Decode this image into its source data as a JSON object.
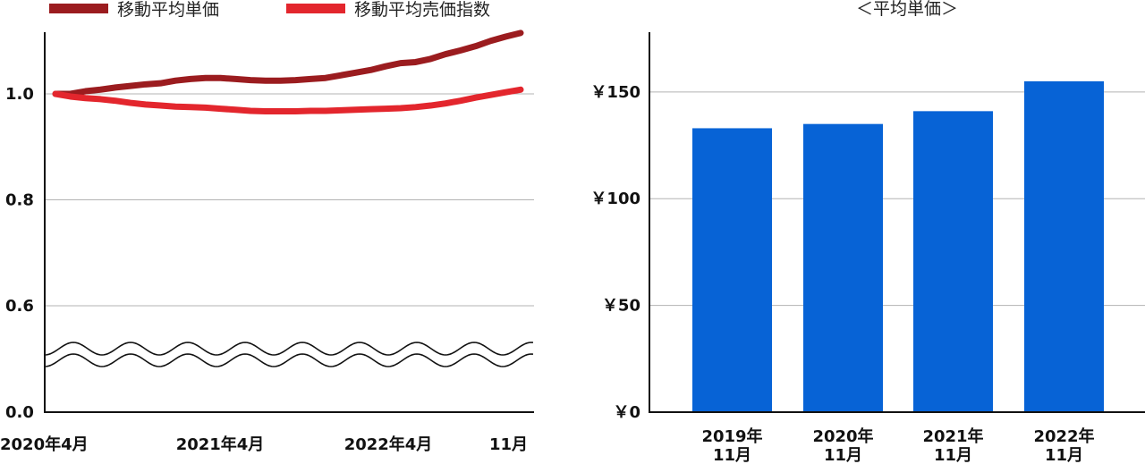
{
  "chart_data": [
    {
      "type": "line",
      "legend": [
        "移動平均単価",
        "移動平均売価指数"
      ],
      "legend_placement": "top",
      "x_tick_labels": [
        "2020年4月",
        "2021年4月",
        "2022年4月",
        "11月"
      ],
      "y_ticks": [
        {
          "value": 0.0,
          "label": "0.0"
        },
        {
          "value": 0.6,
          "label": "0.6"
        },
        {
          "value": 0.8,
          "label": "0.8"
        },
        {
          "value": 1.0,
          "label": "1.0"
        }
      ],
      "ylim": [
        0.0,
        1.12
      ],
      "axis_break": [
        0.5,
        0.6
      ],
      "grid": true,
      "series": [
        {
          "name": "移動平均単価",
          "color": "#9b1c1f",
          "x": [
            "2020-04",
            "2020-05",
            "2020-06",
            "2020-07",
            "2020-08",
            "2020-09",
            "2020-10",
            "2020-11",
            "2020-12",
            "2021-01",
            "2021-02",
            "2021-03",
            "2021-04",
            "2021-05",
            "2021-06",
            "2021-07",
            "2021-08",
            "2021-09",
            "2021-10",
            "2021-11",
            "2021-12",
            "2022-01",
            "2022-02",
            "2022-03",
            "2022-04",
            "2022-05",
            "2022-06",
            "2022-07",
            "2022-08",
            "2022-09",
            "2022-10",
            "2022-11"
          ],
          "values": [
            1.0,
            1.0,
            1.005,
            1.008,
            1.012,
            1.015,
            1.018,
            1.02,
            1.025,
            1.028,
            1.03,
            1.03,
            1.028,
            1.026,
            1.025,
            1.025,
            1.026,
            1.028,
            1.03,
            1.035,
            1.04,
            1.045,
            1.052,
            1.058,
            1.06,
            1.066,
            1.075,
            1.082,
            1.09,
            1.1,
            1.108,
            1.115
          ]
        },
        {
          "name": "移動平均売価指数",
          "color": "#e3262d",
          "x": [
            "2020-04",
            "2020-05",
            "2020-06",
            "2020-07",
            "2020-08",
            "2020-09",
            "2020-10",
            "2020-11",
            "2020-12",
            "2021-01",
            "2021-02",
            "2021-03",
            "2021-04",
            "2021-05",
            "2021-06",
            "2021-07",
            "2021-08",
            "2021-09",
            "2021-10",
            "2021-11",
            "2021-12",
            "2022-01",
            "2022-02",
            "2022-03",
            "2022-04",
            "2022-05",
            "2022-06",
            "2022-07",
            "2022-08",
            "2022-09",
            "2022-10",
            "2022-11"
          ],
          "values": [
            1.0,
            0.995,
            0.992,
            0.99,
            0.987,
            0.983,
            0.98,
            0.978,
            0.976,
            0.975,
            0.974,
            0.972,
            0.97,
            0.968,
            0.967,
            0.967,
            0.967,
            0.968,
            0.968,
            0.969,
            0.97,
            0.971,
            0.972,
            0.973,
            0.975,
            0.978,
            0.982,
            0.987,
            0.993,
            0.998,
            1.003,
            1.008
          ]
        }
      ]
    },
    {
      "type": "bar",
      "title": "＜平均単価＞",
      "categories": [
        "2019年\n11月",
        "2020年\n11月",
        "2021年\n11月",
        "2022年\n11月"
      ],
      "category_labels": [
        {
          "line1": "2019年",
          "line2": "11月"
        },
        {
          "line1": "2020年",
          "line2": "11月"
        },
        {
          "line1": "2021年",
          "line2": "11月"
        },
        {
          "line1": "2022年",
          "line2": "11月"
        }
      ],
      "values": [
        133,
        135,
        141,
        155
      ],
      "color": "#0763d6",
      "y_ticks": [
        {
          "value": 0,
          "label": "￥0"
        },
        {
          "value": 50,
          "label": "￥50"
        },
        {
          "value": 100,
          "label": "￥100"
        },
        {
          "value": 150,
          "label": "￥150"
        }
      ],
      "ylim": [
        0,
        178
      ],
      "grid": true
    }
  ]
}
